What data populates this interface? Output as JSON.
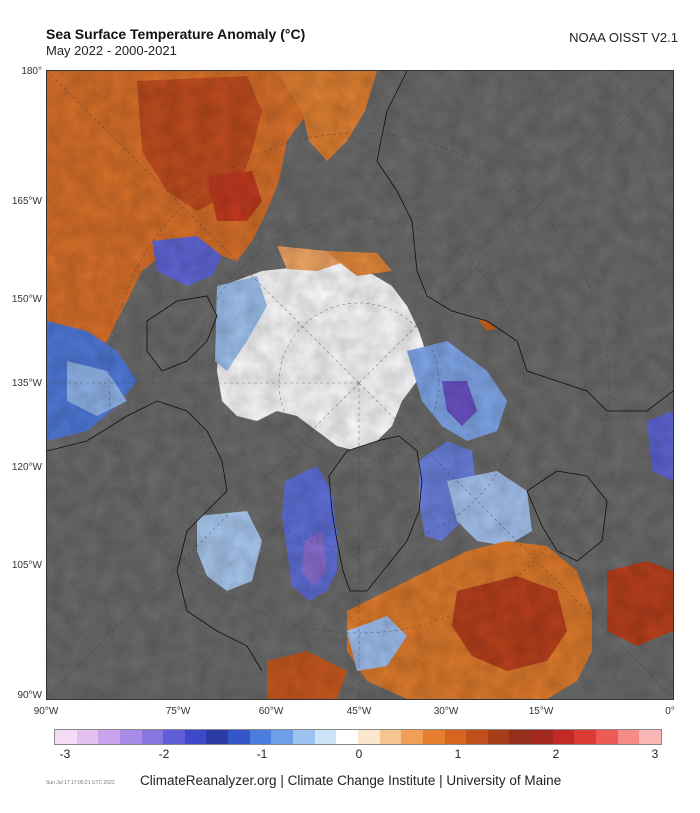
{
  "header": {
    "title": "Sea Surface Temperature Anomaly (°C)",
    "subtitle": "May 2022 - 2000-2021",
    "source": "NOAA OISST V2.1"
  },
  "map": {
    "projection": "north-polar-stereographic",
    "lat_labels": [
      "180°",
      "165°W",
      "150°W",
      "135°W",
      "120°W",
      "105°W",
      "90°W"
    ],
    "lon_labels": [
      "90°W",
      "75°W",
      "60°W",
      "45°W",
      "30°W",
      "15°W",
      "0°"
    ],
    "colors": {
      "land": "#6b6b6b",
      "ice_neutral": "#ffffff",
      "warm_anomaly": "#d2691e",
      "strong_warm": "#b03020",
      "cool_anomaly": "#4a6fd6",
      "strong_cool": "#7b58c8"
    }
  },
  "legend": {
    "tick_labels": [
      "-3",
      "-2",
      "-1",
      "0",
      "1",
      "2",
      "3"
    ],
    "min": -3,
    "max": 3,
    "palette": [
      "#f4dcf4",
      "#e4c0f0",
      "#c9a3ee",
      "#a98be8",
      "#8676e0",
      "#5f5ed8",
      "#3d49c8",
      "#2c3aa6",
      "#3357c9",
      "#4a7ddd",
      "#6c9fe8",
      "#9cc3f0",
      "#cde3f8",
      "#ffffff",
      "#fbe6cf",
      "#f6c48f",
      "#f0a056",
      "#e57f2e",
      "#d5651f",
      "#c04f1b",
      "#a83d1a",
      "#932f1b",
      "#a3281f",
      "#c22a26",
      "#dc3a33",
      "#ee5a55",
      "#f58a86",
      "#f9b8b5"
    ]
  },
  "footer": {
    "timestamp": "Sun Jul 17 17:00:21 UTC 2022",
    "credit": "ClimateReanalyzer.org | Climate Change Institute | University of Maine"
  }
}
